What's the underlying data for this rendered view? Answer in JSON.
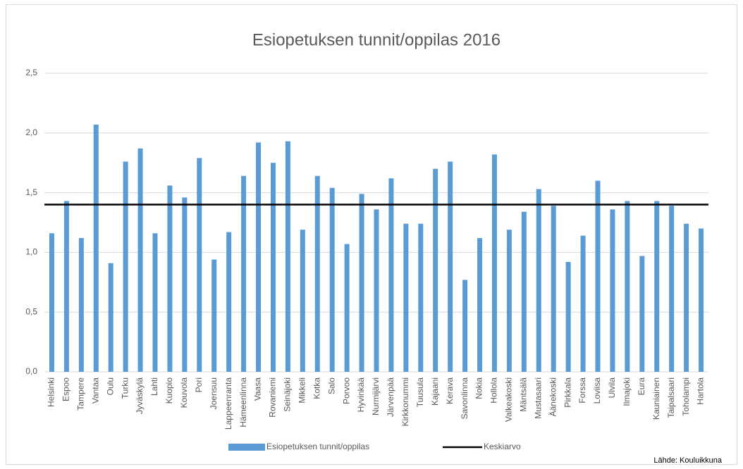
{
  "chart_data": {
    "type": "bar",
    "title": "Esiopetuksen tunnit/oppilas 2016",
    "categories": [
      "Helsinki",
      "Espoo",
      "Tampere",
      "Vantaa",
      "Oulu",
      "Turku",
      "Jyväskylä",
      "Lahti",
      "Kuopio",
      "Kouvola",
      "Pori",
      "Joensuu",
      "Lappeenranta",
      "Hämeenlinna",
      "Vaasa",
      "Rovaniemi",
      "Seinäjoki",
      "Mikkeli",
      "Kotka",
      "Salo",
      "Porvoo",
      "Hyvinkää",
      "Nurmijärvi",
      "Järvenpää",
      "Kirkkonummi",
      "Tuusula",
      "Kajaani",
      "Kerava",
      "Savonlinna",
      "Nokia",
      "Hollola",
      "Valkeakoski",
      "Mäntsälä",
      "Mustasaari",
      "Äänekoski",
      "Pirkkala",
      "Forssa",
      "Loviisa",
      "Ulvila",
      "Ilmajoki",
      "Eura",
      "Kauniainen",
      "Taipalsaari",
      "Toholampi",
      "Hartola"
    ],
    "series": [
      {
        "name": "Esiopetuksen tunnit/oppilas",
        "color": "#5b9bd5",
        "values": [
          1.16,
          1.43,
          1.12,
          2.07,
          0.91,
          1.76,
          1.87,
          1.16,
          1.56,
          1.46,
          1.79,
          0.94,
          1.17,
          1.64,
          1.92,
          1.75,
          1.93,
          1.19,
          1.64,
          1.54,
          1.07,
          1.49,
          1.36,
          1.62,
          1.24,
          1.24,
          1.7,
          1.76,
          0.77,
          1.12,
          1.82,
          1.19,
          1.34,
          1.53,
          1.39,
          0.92,
          1.14,
          1.6,
          1.36,
          1.43,
          0.97,
          1.43,
          1.39,
          1.24,
          1.2
        ]
      }
    ],
    "average_line": {
      "name": "Keskiarvo",
      "color": "#000000",
      "value": 1.4
    },
    "ylim": [
      0,
      2.5
    ],
    "yticks": [
      {
        "value": 0,
        "label": "0,0"
      },
      {
        "value": 0.5,
        "label": "0,5"
      },
      {
        "value": 1,
        "label": "1,0"
      },
      {
        "value": 1.5,
        "label": "1,5"
      },
      {
        "value": 2,
        "label": "2,0"
      },
      {
        "value": 2.5,
        "label": "2,5"
      }
    ],
    "grid": true,
    "source": "Lähde: Kouluikkuna"
  }
}
